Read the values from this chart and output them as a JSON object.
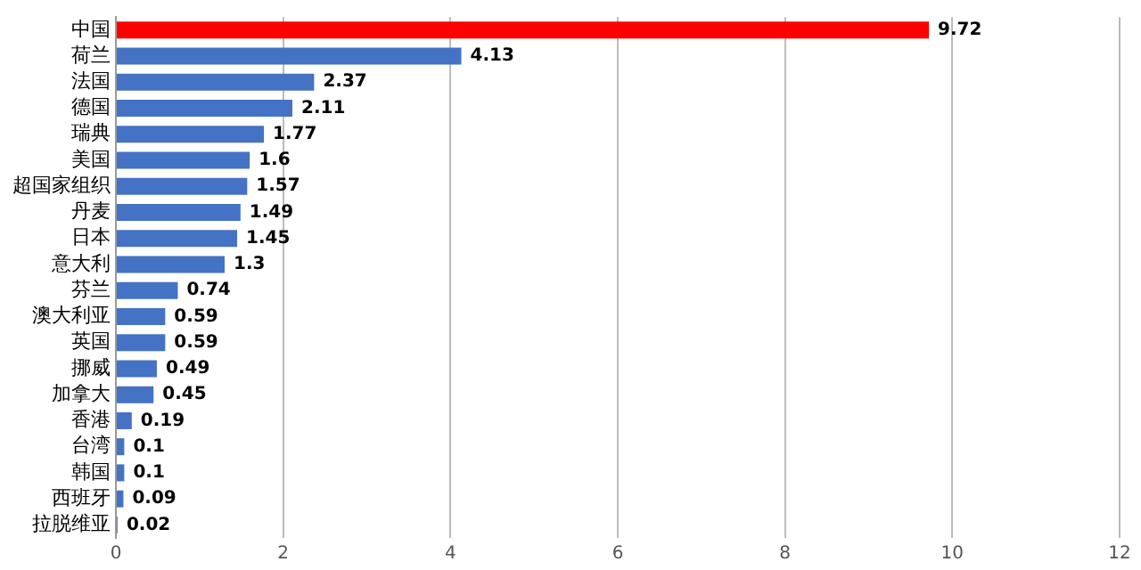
{
  "chart_data": {
    "type": "bar",
    "orientation": "horizontal",
    "categories": [
      "中国",
      "荷兰",
      "法国",
      "德国",
      "瑞典",
      "美国",
      "超国家组织",
      "丹麦",
      "日本",
      "意大利",
      "芬兰",
      "澳大利亚",
      "英国",
      "挪威",
      "加拿大",
      "香港",
      "台湾",
      "韩国",
      "西班牙",
      "拉脱维亚"
    ],
    "values": [
      9.72,
      4.13,
      2.37,
      2.11,
      1.77,
      1.6,
      1.57,
      1.49,
      1.45,
      1.3,
      0.74,
      0.59,
      0.59,
      0.49,
      0.45,
      0.19,
      0.1,
      0.1,
      0.09,
      0.02
    ],
    "colors": [
      "#ff0000",
      "#4472c4",
      "#4472c4",
      "#4472c4",
      "#4472c4",
      "#4472c4",
      "#4472c4",
      "#4472c4",
      "#4472c4",
      "#4472c4",
      "#4472c4",
      "#4472c4",
      "#4472c4",
      "#4472c4",
      "#4472c4",
      "#4472c4",
      "#4472c4",
      "#4472c4",
      "#4472c4",
      "#4472c4"
    ],
    "xlim": [
      0,
      12
    ],
    "xticks": [
      0,
      2,
      4,
      6,
      8,
      10,
      12
    ],
    "grid": "x",
    "data_labels": true,
    "legend": false
  }
}
